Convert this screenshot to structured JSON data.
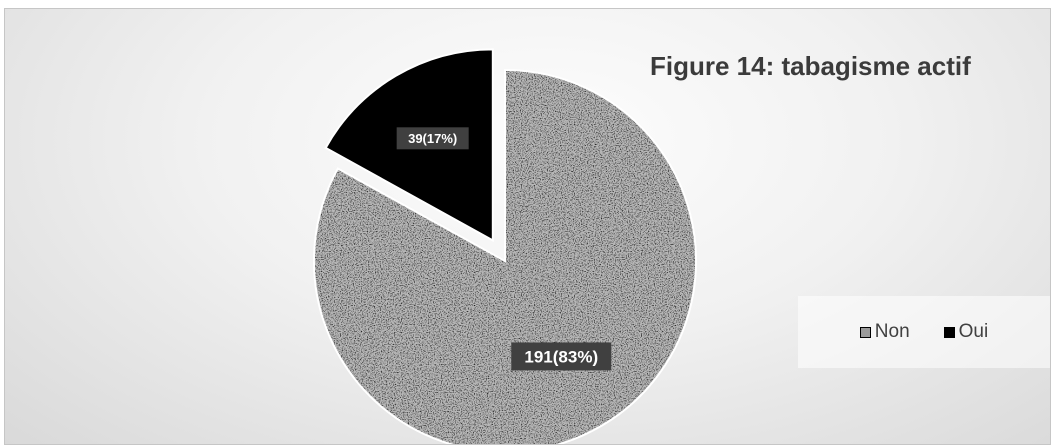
{
  "chart_data": {
    "type": "pie",
    "title": "Figure 14: tabagisme actif",
    "slices": [
      {
        "name": "Non",
        "value": 191,
        "percent": 83,
        "label": "191(83%)",
        "color": "#8f8f8f",
        "pattern": "speckle",
        "exploded": false
      },
      {
        "name": "Oui",
        "value": 39,
        "percent": 17,
        "label": "39(17%)",
        "color": "#000000",
        "pattern": "solid",
        "exploded": true
      }
    ],
    "legend": {
      "position": "right",
      "entries": [
        "Non",
        "Oui"
      ]
    },
    "label_background": "#404040",
    "label_color": "#ffffff"
  }
}
